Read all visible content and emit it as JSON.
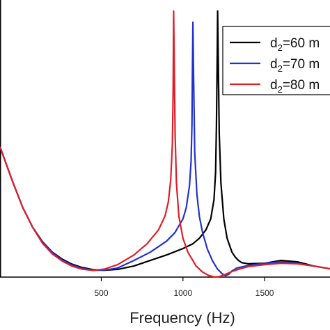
{
  "chart_data": {
    "type": "line",
    "xlabel": "Frequency (Hz)",
    "ylabel": "",
    "title": "",
    "xlim": [
      -120,
      1900
    ],
    "ylim": [
      0,
      1
    ],
    "x_ticks": [
      500,
      1000,
      1500
    ],
    "grid": false,
    "legend_position": "top-right",
    "series": [
      {
        "name": "d2=60 m",
        "legend": {
          "prefix": "d",
          "sub": "2",
          "rest": "=60 m"
        },
        "color": "#000000",
        "x": [
          -120,
          -40,
          20,
          80,
          140,
          200,
          260,
          320,
          380,
          450,
          520,
          600,
          700,
          800,
          900,
          1000,
          1060,
          1100,
          1140,
          1170,
          1190,
          1200,
          1205,
          1210,
          1212,
          1215,
          1222,
          1232,
          1250,
          1270,
          1300,
          1320,
          1340,
          1360,
          1400,
          1500,
          1600,
          1700,
          1800,
          1900
        ],
        "y": [
          0.47,
          0.34,
          0.25,
          0.18,
          0.128,
          0.09,
          0.065,
          0.047,
          0.035,
          0.027,
          0.025,
          0.028,
          0.04,
          0.06,
          0.08,
          0.103,
          0.12,
          0.14,
          0.17,
          0.21,
          0.28,
          0.38,
          0.55,
          0.82,
          0.96,
          0.82,
          0.52,
          0.34,
          0.21,
          0.14,
          0.09,
          0.072,
          0.06,
          0.052,
          0.048,
          0.05,
          0.06,
          0.055,
          0.04,
          0.03
        ]
      },
      {
        "name": "d2=70 m",
        "legend": {
          "prefix": "d",
          "sub": "2",
          "rest": "=70 m"
        },
        "color": "#2233cc",
        "x": [
          -120,
          -40,
          20,
          80,
          140,
          200,
          260,
          320,
          380,
          450,
          520,
          600,
          700,
          800,
          900,
          950,
          1000,
          1020,
          1040,
          1050,
          1055,
          1058,
          1061,
          1065,
          1072,
          1085,
          1100,
          1120,
          1150,
          1180,
          1210,
          1240,
          1260,
          1280,
          1300,
          1330,
          1400,
          1500,
          1600,
          1700,
          1800,
          1900
        ],
        "y": [
          0.47,
          0.34,
          0.25,
          0.18,
          0.126,
          0.088,
          0.062,
          0.044,
          0.032,
          0.025,
          0.025,
          0.033,
          0.06,
          0.09,
          0.13,
          0.16,
          0.21,
          0.25,
          0.33,
          0.42,
          0.55,
          0.75,
          0.92,
          0.72,
          0.45,
          0.3,
          0.22,
          0.16,
          0.1,
          0.06,
          0.03,
          0.012,
          0.005,
          0.01,
          0.022,
          0.033,
          0.042,
          0.05,
          0.055,
          0.05,
          0.04,
          0.03
        ]
      },
      {
        "name": "d2=80 m",
        "legend": {
          "prefix": "d",
          "sub": "2",
          "rest": "=80 m"
        },
        "color": "#dd1f2a",
        "x": [
          -120,
          -40,
          20,
          80,
          140,
          200,
          260,
          320,
          380,
          450,
          520,
          600,
          700,
          780,
          850,
          890,
          910,
          925,
          935,
          940,
          943,
          947,
          952,
          960,
          975,
          1000,
          1030,
          1080,
          1120,
          1160,
          1200,
          1230,
          1260,
          1300,
          1350,
          1400,
          1500,
          1600,
          1700,
          1800,
          1900
        ],
        "y": [
          0.47,
          0.34,
          0.25,
          0.18,
          0.122,
          0.084,
          0.058,
          0.04,
          0.029,
          0.024,
          0.029,
          0.045,
          0.08,
          0.12,
          0.17,
          0.22,
          0.27,
          0.35,
          0.48,
          0.68,
          0.96,
          0.75,
          0.52,
          0.34,
          0.22,
          0.14,
          0.09,
          0.04,
          0.018,
          0.005,
          0.0,
          0.003,
          0.01,
          0.02,
          0.03,
          0.038,
          0.045,
          0.05,
          0.048,
          0.04,
          0.03
        ]
      }
    ]
  }
}
